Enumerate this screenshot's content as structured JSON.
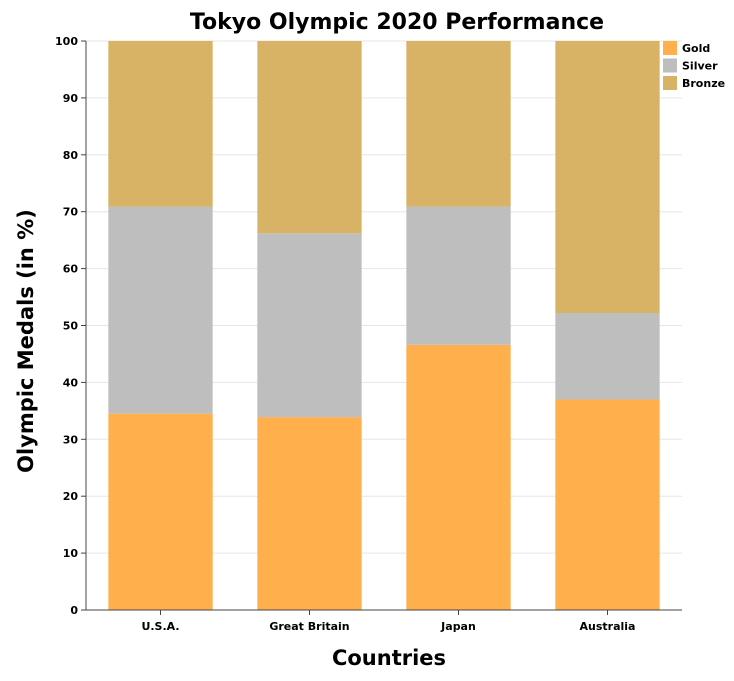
{
  "chart_data": {
    "type": "bar",
    "stacked": true,
    "title": "Tokyo Olympic 2020 Performance",
    "xlabel": "Countries",
    "ylabel": "Olympic Medals (in %)",
    "ylim": [
      0,
      100
    ],
    "yticks": [
      0,
      10,
      20,
      30,
      40,
      50,
      60,
      70,
      80,
      90,
      100
    ],
    "categories": [
      "U.S.A.",
      "Great Britain",
      "Japan",
      "Australia"
    ],
    "series": [
      {
        "name": "Gold",
        "color": "#ffaf4b",
        "values": [
          34.5,
          33.9,
          46.6,
          37.0
        ]
      },
      {
        "name": "Silver",
        "color": "#bebebe",
        "values": [
          36.4,
          32.3,
          24.3,
          15.2
        ]
      },
      {
        "name": "Bronze",
        "color": "#d8b365",
        "values": [
          29.1,
          33.8,
          29.1,
          47.8
        ]
      }
    ],
    "grid": true,
    "legend": "top-right"
  }
}
